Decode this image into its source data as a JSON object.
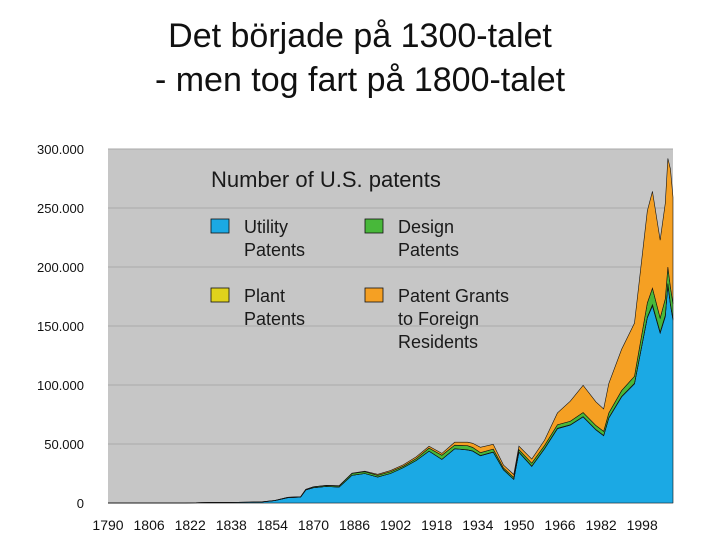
{
  "title": {
    "line1": "Det började på 1300-talet",
    "line2": "- men tog fart på 1800-talet"
  },
  "chart_data": {
    "type": "area",
    "stacked": true,
    "title": "Number of U.S. patents",
    "xlabel": "",
    "ylabel": "",
    "xlim": [
      1790,
      2010
    ],
    "ylim": [
      0,
      300000
    ],
    "grid": true,
    "legend_placement": "top-left",
    "background": "#c6c6c6",
    "x_tick_labels": [
      "1790",
      "1806",
      "1822",
      "1838",
      "1854",
      "1870",
      "1886",
      "1902",
      "1918",
      "1934",
      "1950",
      "1966",
      "1982",
      "1998"
    ],
    "x_tick_values": [
      1790,
      1806,
      1822,
      1838,
      1854,
      1870,
      1886,
      1902,
      1918,
      1934,
      1950,
      1966,
      1982,
      1998
    ],
    "y_tick_labels": [
      "0",
      "50.000",
      "100.000",
      "150.000",
      "200.000",
      "250.000",
      "300.000"
    ],
    "y_tick_values": [
      0,
      50000,
      100000,
      150000,
      200000,
      250000,
      300000
    ],
    "x": [
      1790,
      1800,
      1810,
      1820,
      1830,
      1836,
      1845,
      1850,
      1855,
      1860,
      1865,
      1867,
      1870,
      1875,
      1880,
      1885,
      1890,
      1895,
      1900,
      1905,
      1910,
      1915,
      1920,
      1925,
      1930,
      1932,
      1935,
      1940,
      1944,
      1948,
      1950,
      1955,
      1960,
      1965,
      1970,
      1975,
      1980,
      1983,
      1985,
      1990,
      1995,
      2000,
      2002,
      2005,
      2007,
      2008,
      2009,
      2010
    ],
    "series": [
      {
        "name": "Utility Patents",
        "color": "#1ba9e4",
        "values": [
          0,
          0,
          0,
          0,
          500,
          500,
          700,
          900,
          2000,
          4500,
          5000,
          11000,
          13000,
          14000,
          13500,
          23500,
          25000,
          22000,
          25000,
          30000,
          36000,
          44000,
          37000,
          46000,
          45000,
          44000,
          40000,
          43000,
          28000,
          20000,
          43000,
          31000,
          46000,
          63000,
          66000,
          73000,
          62000,
          57000,
          72000,
          90000,
          101000,
          157000,
          167000,
          144000,
          158000,
          185000,
          168000,
          155000
        ]
      },
      {
        "name": "Plant Patents",
        "color": "#e0d21c",
        "values": [
          0,
          0,
          0,
          0,
          0,
          0,
          0,
          0,
          0,
          0,
          0,
          0,
          0,
          0,
          0,
          0,
          0,
          0,
          0,
          0,
          0,
          0,
          0,
          0,
          50,
          100,
          200,
          200,
          150,
          150,
          200,
          250,
          300,
          300,
          250,
          200,
          150,
          200,
          250,
          300,
          400,
          500,
          1100,
          700,
          1000,
          1000,
          1000,
          1000
        ]
      },
      {
        "name": "Design Patents",
        "color": "#48b83a",
        "values": [
          0,
          0,
          0,
          0,
          0,
          0,
          50,
          100,
          200,
          300,
          400,
          500,
          700,
          900,
          1000,
          1500,
          1500,
          1500,
          1500,
          1200,
          1600,
          2500,
          3500,
          3000,
          3500,
          3000,
          2500,
          2500,
          1500,
          1500,
          2000,
          2500,
          2500,
          3000,
          3000,
          3500,
          3500,
          3500,
          4000,
          5000,
          6000,
          12000,
          14000,
          12000,
          14000,
          14000,
          14000,
          13000
        ]
      },
      {
        "name": "Patent Grants to Foreign Residents",
        "color": "#f5a023",
        "values": [
          0,
          0,
          0,
          0,
          0,
          0,
          0,
          0,
          0,
          0,
          0,
          0,
          0,
          100,
          200,
          300,
          500,
          800,
          1000,
          1200,
          1500,
          1600,
          1500,
          2500,
          3000,
          3500,
          4500,
          4000,
          2500,
          2500,
          3000,
          3500,
          4500,
          10000,
          17000,
          23000,
          20000,
          19000,
          25000,
          35000,
          45000,
          78000,
          82000,
          66000,
          81000,
          92000,
          100000,
          90000
        ]
      }
    ]
  }
}
